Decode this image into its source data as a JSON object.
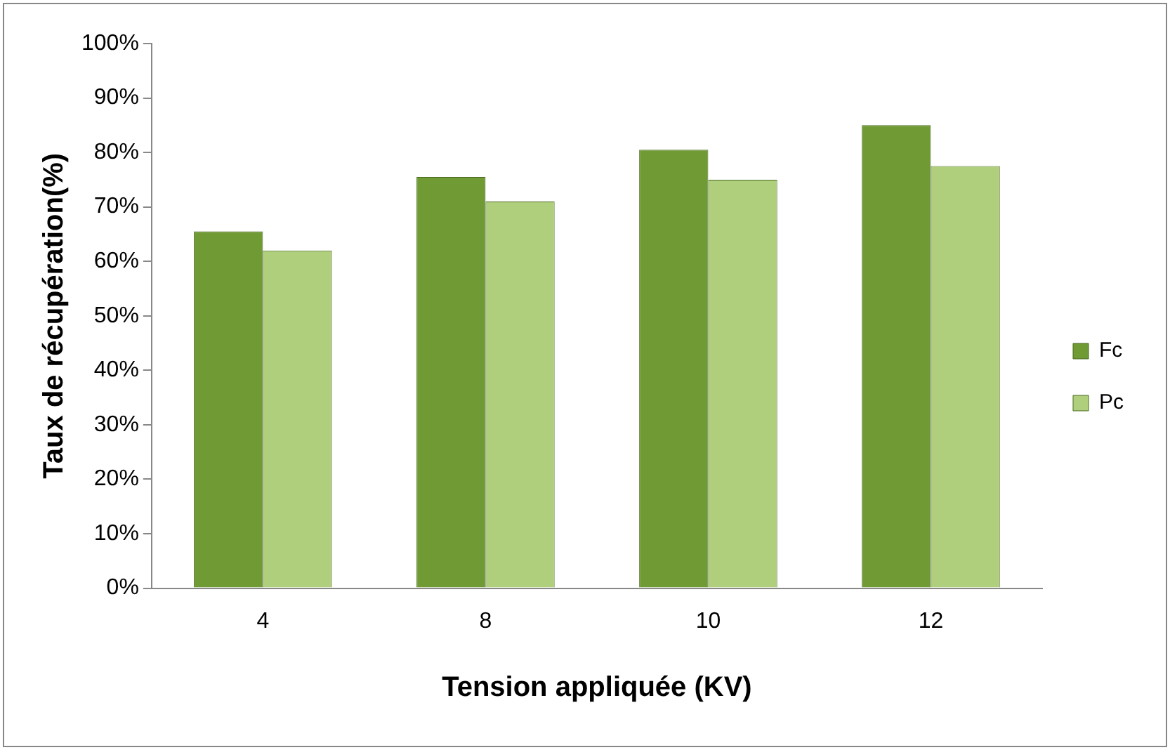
{
  "chart_data": {
    "type": "bar",
    "xlabel": "Tension appliquée (KV)",
    "ylabel": "Taux de récupération(%)",
    "categories": [
      "4",
      "8",
      "10",
      "12"
    ],
    "series": [
      {
        "name": "Fc",
        "color": "#6f9a34",
        "values": [
          65.5,
          75.5,
          80.5,
          85
        ]
      },
      {
        "name": "Pc",
        "color": "#b0cf7c",
        "values": [
          62,
          71,
          75,
          77.5
        ]
      }
    ],
    "ylim": [
      0,
      100
    ],
    "yticks": [
      {
        "value": 0,
        "label": "0%"
      },
      {
        "value": 10,
        "label": "10%"
      },
      {
        "value": 20,
        "label": "20%"
      },
      {
        "value": 30,
        "label": "30%"
      },
      {
        "value": 40,
        "label": "40%"
      },
      {
        "value": 50,
        "label": "50%"
      },
      {
        "value": 60,
        "label": "60%"
      },
      {
        "value": 70,
        "label": "70%"
      },
      {
        "value": 80,
        "label": "80%"
      },
      {
        "value": 90,
        "label": "90%"
      },
      {
        "value": 100,
        "label": "100%"
      }
    ],
    "grid": false,
    "legend": "right"
  }
}
